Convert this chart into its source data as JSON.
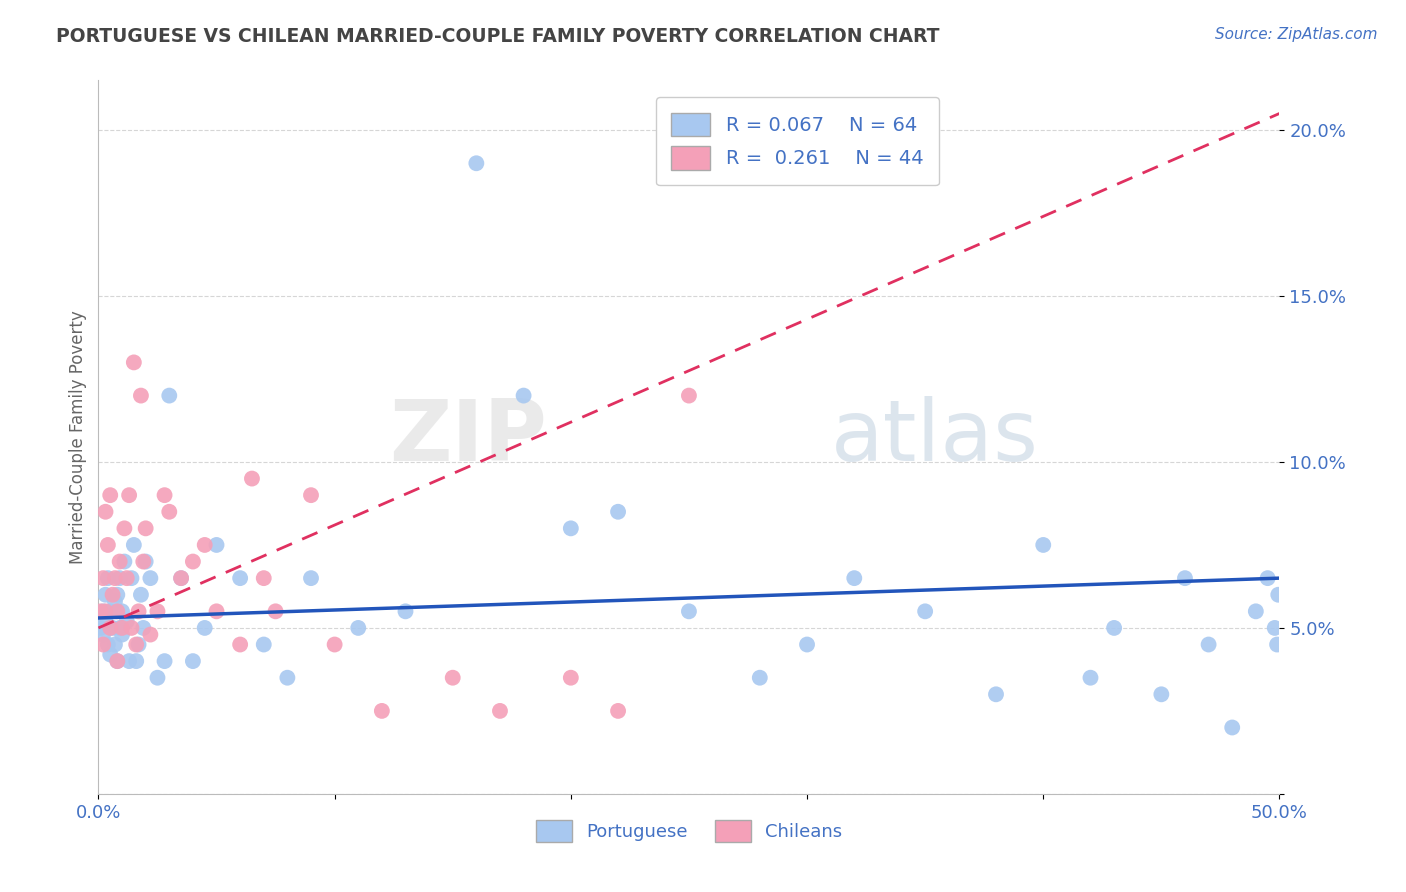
{
  "title": "PORTUGUESE VS CHILEAN MARRIED-COUPLE FAMILY POVERTY CORRELATION CHART",
  "source": "Source: ZipAtlas.com",
  "ylabel": "Married-Couple Family Poverty",
  "xlim": [
    0.0,
    0.5
  ],
  "ylim": [
    0.0,
    0.215
  ],
  "portuguese_R": 0.067,
  "portuguese_N": 64,
  "chilean_R": 0.261,
  "chilean_N": 44,
  "blue_color": "#A8C8F0",
  "pink_color": "#F4A0B8",
  "blue_line_color": "#2255BB",
  "pink_line_color": "#E03060",
  "title_color": "#444444",
  "axis_color": "#4472C4",
  "background_color": "#FFFFFF",
  "grid_color": "#CCCCCC",
  "portuguese_x": [
    0.001,
    0.002,
    0.002,
    0.003,
    0.003,
    0.004,
    0.004,
    0.005,
    0.005,
    0.006,
    0.007,
    0.007,
    0.008,
    0.008,
    0.009,
    0.009,
    0.01,
    0.01,
    0.011,
    0.012,
    0.013,
    0.014,
    0.015,
    0.016,
    0.017,
    0.018,
    0.019,
    0.02,
    0.022,
    0.025,
    0.028,
    0.03,
    0.035,
    0.04,
    0.045,
    0.05,
    0.06,
    0.07,
    0.08,
    0.09,
    0.11,
    0.13,
    0.16,
    0.18,
    0.2,
    0.22,
    0.25,
    0.28,
    0.3,
    0.32,
    0.35,
    0.38,
    0.4,
    0.42,
    0.43,
    0.45,
    0.46,
    0.47,
    0.48,
    0.49,
    0.495,
    0.498,
    0.499,
    0.4995
  ],
  "portuguese_y": [
    0.05,
    0.048,
    0.055,
    0.052,
    0.06,
    0.045,
    0.065,
    0.042,
    0.055,
    0.05,
    0.058,
    0.045,
    0.06,
    0.04,
    0.065,
    0.05,
    0.055,
    0.048,
    0.07,
    0.052,
    0.04,
    0.065,
    0.075,
    0.04,
    0.045,
    0.06,
    0.05,
    0.07,
    0.065,
    0.035,
    0.04,
    0.12,
    0.065,
    0.04,
    0.05,
    0.075,
    0.065,
    0.045,
    0.035,
    0.065,
    0.05,
    0.055,
    0.19,
    0.12,
    0.08,
    0.085,
    0.055,
    0.035,
    0.045,
    0.065,
    0.055,
    0.03,
    0.075,
    0.035,
    0.05,
    0.03,
    0.065,
    0.045,
    0.02,
    0.055,
    0.065,
    0.05,
    0.045,
    0.06
  ],
  "chilean_x": [
    0.001,
    0.002,
    0.002,
    0.003,
    0.003,
    0.004,
    0.005,
    0.005,
    0.006,
    0.007,
    0.008,
    0.008,
    0.009,
    0.01,
    0.011,
    0.012,
    0.013,
    0.014,
    0.015,
    0.016,
    0.017,
    0.018,
    0.019,
    0.02,
    0.022,
    0.025,
    0.028,
    0.03,
    0.035,
    0.04,
    0.045,
    0.05,
    0.06,
    0.065,
    0.07,
    0.075,
    0.09,
    0.1,
    0.12,
    0.15,
    0.17,
    0.2,
    0.22,
    0.25
  ],
  "chilean_y": [
    0.055,
    0.065,
    0.045,
    0.085,
    0.055,
    0.075,
    0.05,
    0.09,
    0.06,
    0.065,
    0.055,
    0.04,
    0.07,
    0.05,
    0.08,
    0.065,
    0.09,
    0.05,
    0.13,
    0.045,
    0.055,
    0.12,
    0.07,
    0.08,
    0.048,
    0.055,
    0.09,
    0.085,
    0.065,
    0.07,
    0.075,
    0.055,
    0.045,
    0.095,
    0.065,
    0.055,
    0.09,
    0.045,
    0.025,
    0.035,
    0.025,
    0.035,
    0.025,
    0.12
  ]
}
